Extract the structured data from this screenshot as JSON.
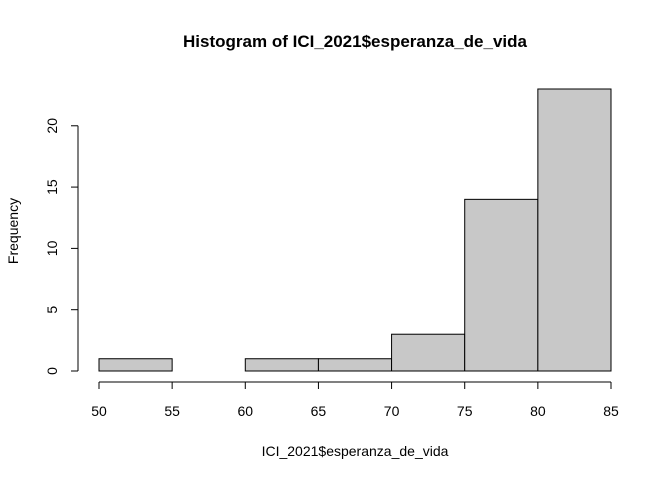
{
  "chart_data": {
    "type": "bar",
    "title": "Histogram of ICI_2021$esperanza_de_vida",
    "xlabel": "ICI_2021$esperanza_de_vida",
    "ylabel": "Frequency",
    "bins": [
      [
        50,
        55
      ],
      [
        55,
        60
      ],
      [
        60,
        65
      ],
      [
        65,
        70
      ],
      [
        70,
        75
      ],
      [
        75,
        80
      ],
      [
        80,
        85
      ]
    ],
    "values": [
      1,
      0,
      1,
      1,
      3,
      14,
      23
    ],
    "xlim": [
      50,
      85
    ],
    "ylim": [
      0,
      23
    ],
    "xticks": [
      50,
      55,
      60,
      65,
      70,
      75,
      80,
      85
    ],
    "yticks": [
      0,
      5,
      10,
      15,
      20
    ],
    "bar_color": "#c8c8c8",
    "grid": false
  }
}
